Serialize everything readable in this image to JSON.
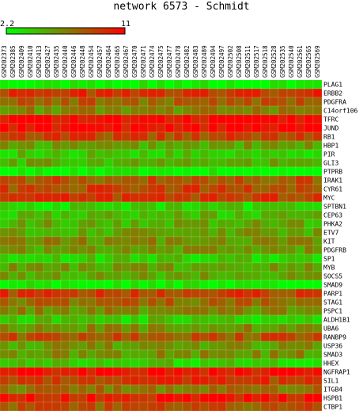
{
  "chart_data": {
    "type": "heatmap",
    "title": "network 6573 - Schmidt",
    "colorbar": {
      "min_label": "2.2",
      "max_label": "11",
      "min": 2.2,
      "max": 11,
      "low_color": "#00ff00",
      "high_color": "#ff0000",
      "mid_color": "#808000"
    },
    "columns": [
      "GSM202373",
      "GSM202385",
      "GSM202409",
      "GSM202410",
      "GSM202413",
      "GSM202427",
      "GSM202435",
      "GSM202440",
      "GSM202446",
      "GSM202448",
      "GSM202454",
      "GSM202457",
      "GSM202464",
      "GSM202465",
      "GSM202467",
      "GSM202470",
      "GSM202471",
      "GSM202474",
      "GSM202475",
      "GSM202477",
      "GSM202478",
      "GSM202482",
      "GSM202483",
      "GSM202489",
      "GSM202494",
      "GSM202497",
      "GSM202502",
      "GSM202508",
      "GSM202511",
      "GSM202517",
      "GSM202518",
      "GSM202528",
      "GSM202535",
      "GSM202540",
      "GSM202561",
      "GSM202565",
      "GSM202569"
    ],
    "rows": [
      "PLAG1",
      "ERBB2",
      "PDGFRA",
      "C14orf106",
      "TFRC",
      "JUND",
      "RB1",
      "HBP1",
      "PIR",
      "GLI3",
      "PTPRB",
      "IRAK1",
      "CYR61",
      "MYC",
      "SPTBN1",
      "CEP63",
      "PHKA2",
      "ETV7",
      "KIT",
      "PDGFRB",
      "SP1",
      "MYB",
      "SOCS5",
      "SMAD9",
      "PARP1",
      "STAG1",
      "PSPC1",
      "ALDH1B1",
      "UBA6",
      "RANBP9",
      "USP36",
      "SMAD3",
      "HHEX",
      "NGFRAP1",
      "SIL1",
      "ITGB4",
      "HSPB1",
      "CTBP1"
    ],
    "row_means": [
      2.4,
      9.2,
      7.6,
      6.3,
      10.6,
      10.7,
      8.6,
      5.4,
      4.3,
      5.0,
      2.3,
      8.1,
      8.6,
      9.0,
      3.6,
      4.6,
      5.1,
      5.4,
      6.2,
      5.6,
      4.0,
      5.5,
      5.4,
      2.5,
      8.9,
      7.4,
      6.3,
      4.1,
      6.1,
      8.2,
      5.8,
      6.0,
      3.9,
      10.4,
      9.0,
      7.0,
      10.1,
      8.0
    ]
  }
}
